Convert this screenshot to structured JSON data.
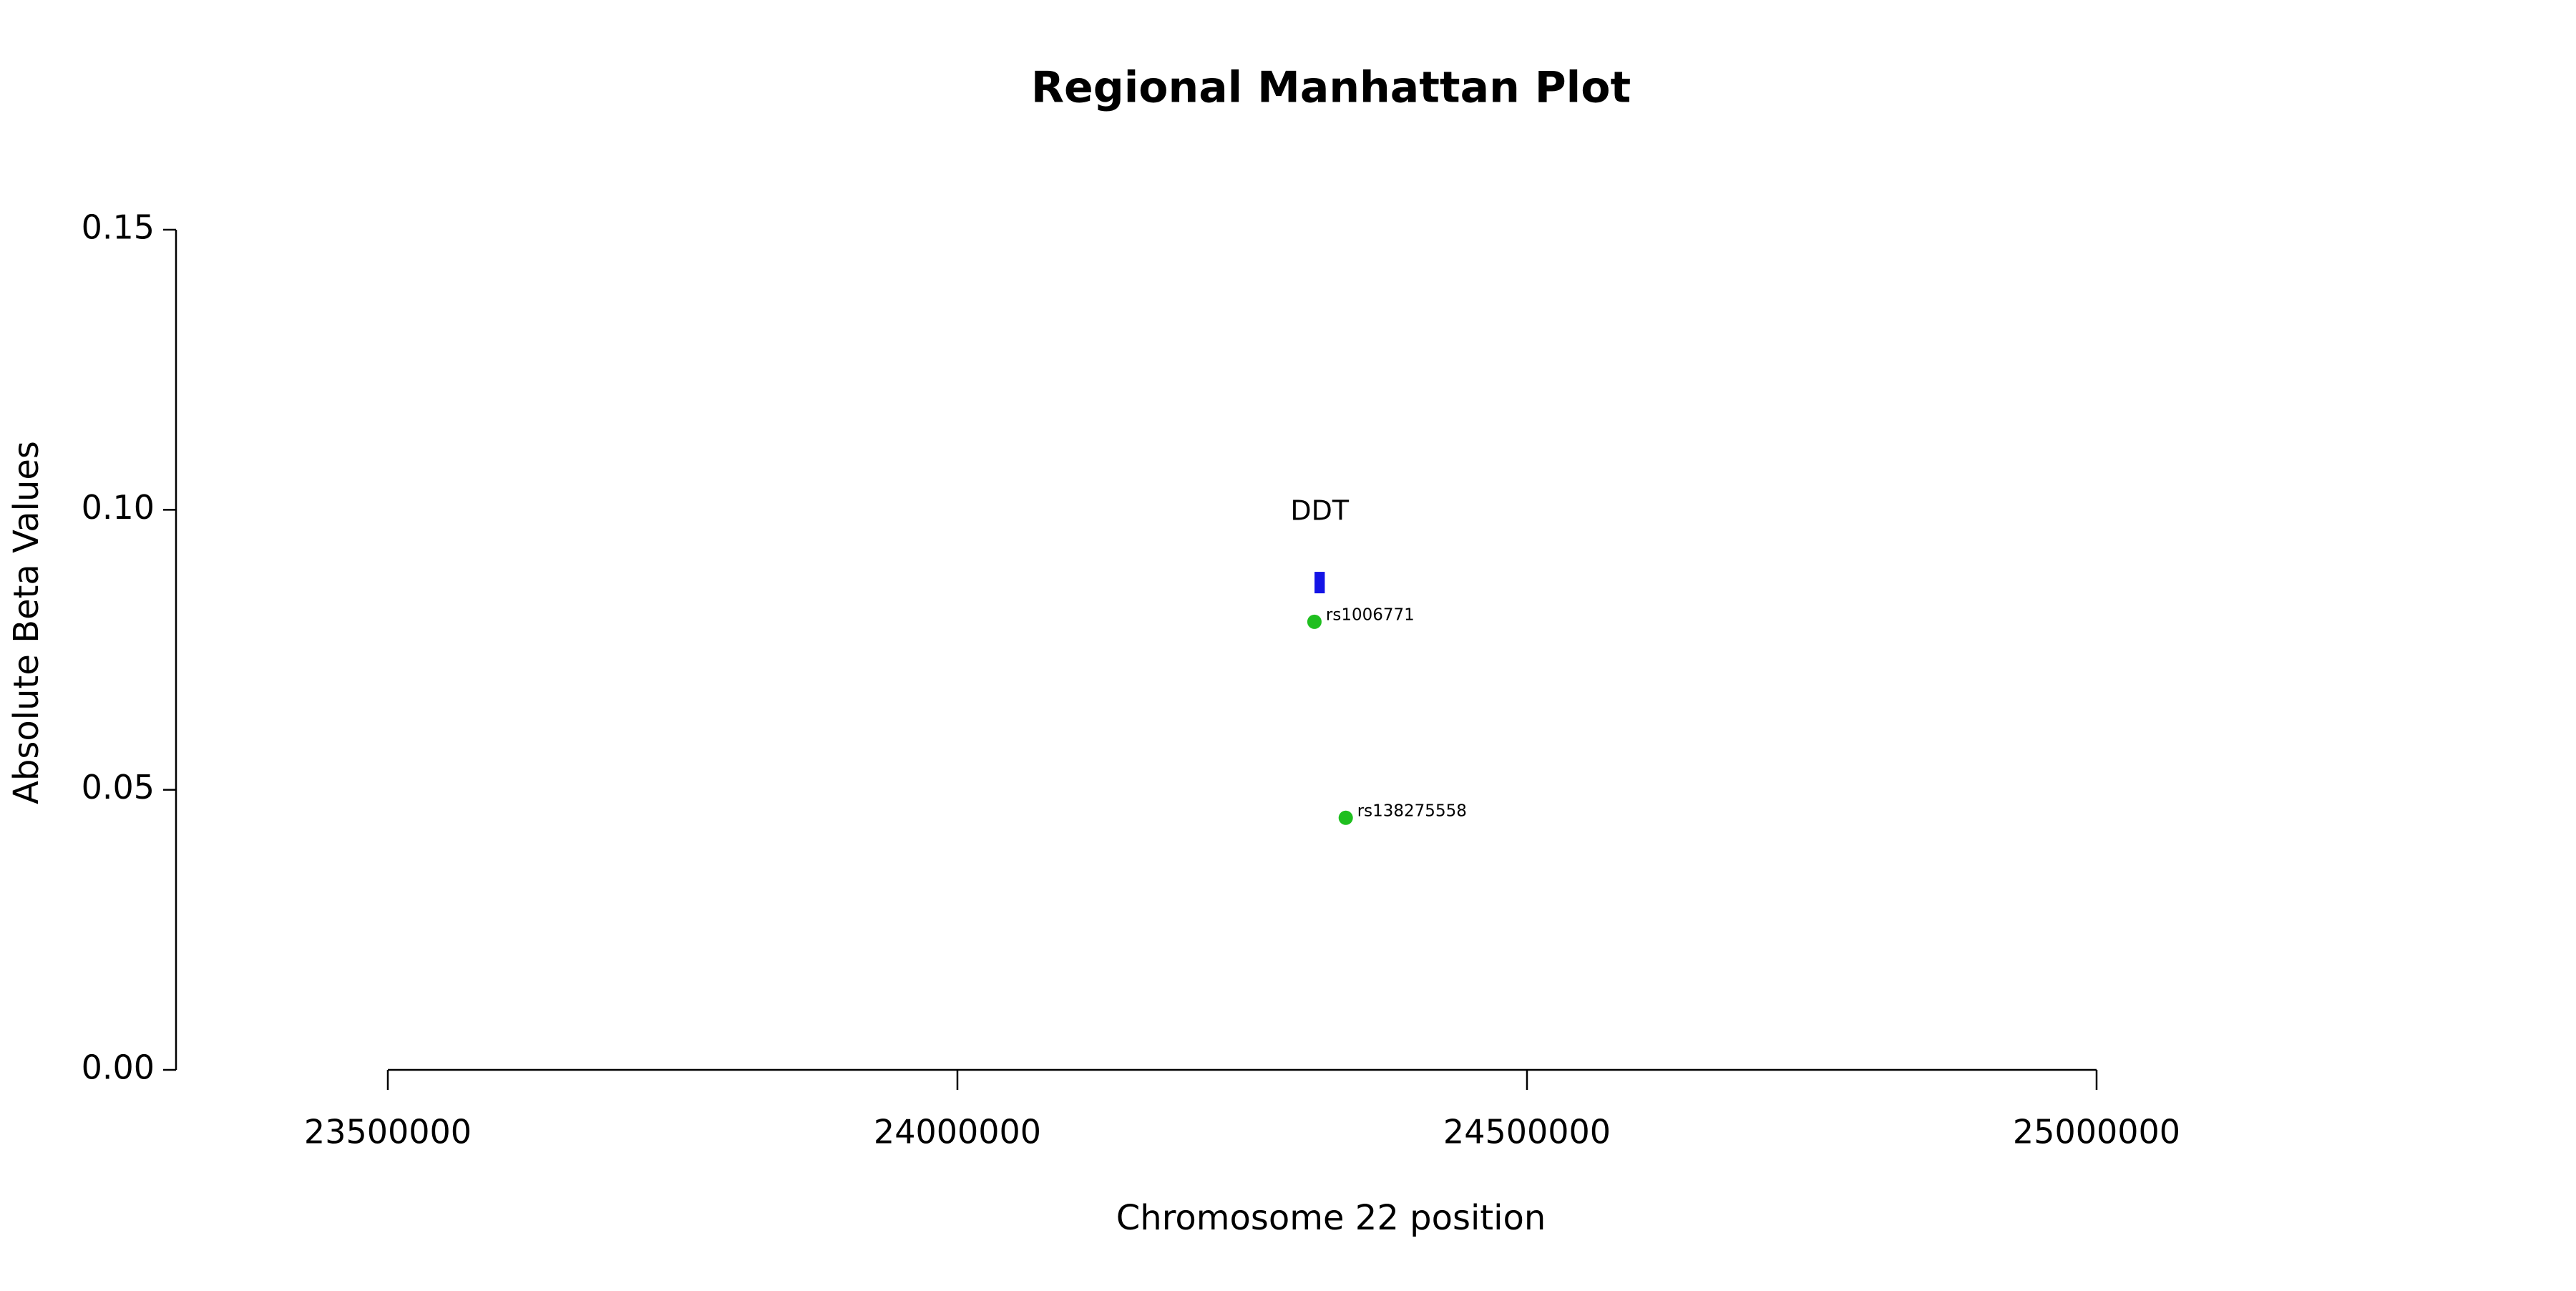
{
  "chart_data": {
    "type": "scatter",
    "title": "Regional Manhattan Plot",
    "x_label": "Chromosome 22 position",
    "y_label": "Absolute Beta Values",
    "xlim": [
      23500000,
      25000000
    ],
    "xticks": [
      23500000,
      24000000,
      24500000,
      25000000
    ],
    "ylim": [
      0,
      0.15
    ],
    "yticks": [
      {
        "value": 0,
        "label": "0.00"
      },
      0.05,
      {
        "value": 0.1,
        "label": "0.10"
      },
      0.15
    ],
    "series": [
      {
        "color": "#1fbf1f",
        "x": [
          24313400,
          24340900
        ],
        "values": [
          0.08,
          0.045
        ],
        "labels": [
          "rs1006771",
          "rs138275558"
        ]
      }
    ],
    "genes": [
      {
        "name": "DDT",
        "start": 24313500,
        "end": 24322500,
        "y": 0.087,
        "color": "#1414e6"
      }
    ]
  }
}
